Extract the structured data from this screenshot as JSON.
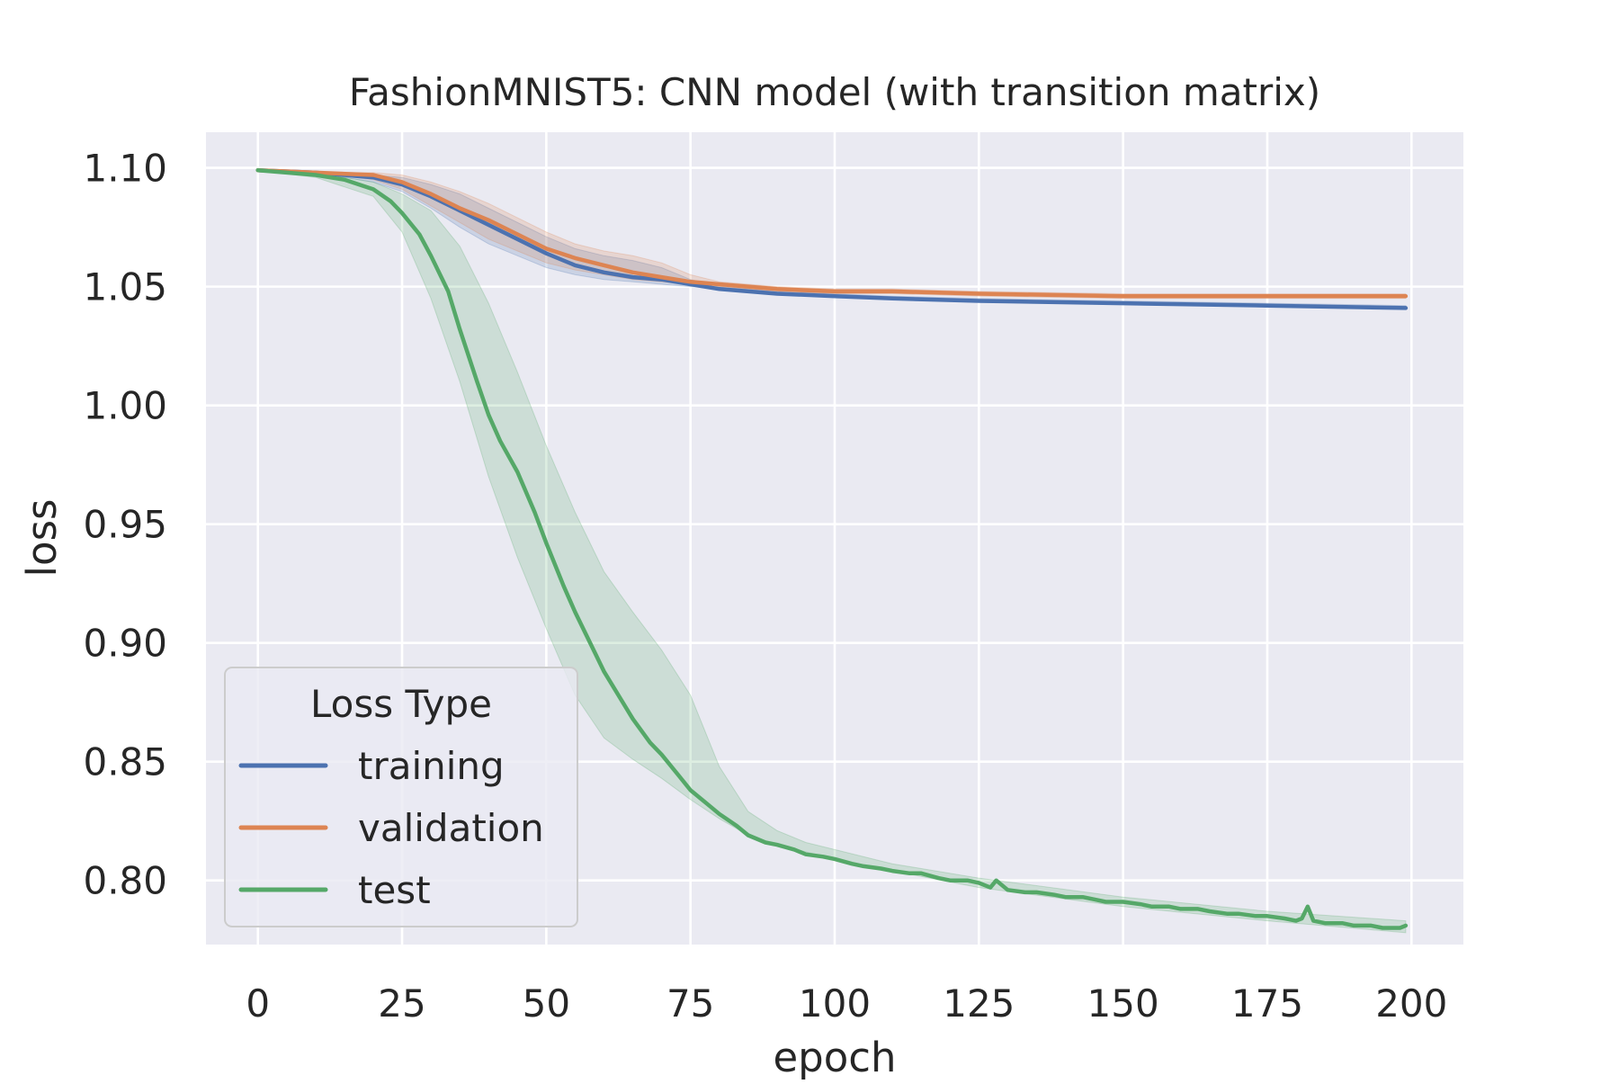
{
  "chart_data": {
    "type": "line",
    "title": "FashionMNIST5: CNN model (with transition matrix)",
    "xlabel": "epoch",
    "ylabel": "loss",
    "xlim": [
      -9,
      209
    ],
    "ylim": [
      0.773,
      1.115
    ],
    "x_ticks": [
      0,
      25,
      50,
      75,
      100,
      125,
      150,
      175,
      200
    ],
    "x_tick_labels": [
      "0",
      "25",
      "50",
      "75",
      "100",
      "125",
      "150",
      "175",
      "200"
    ],
    "y_ticks": [
      0.8,
      0.85,
      0.9,
      0.95,
      1.0,
      1.05,
      1.1
    ],
    "y_tick_labels": [
      "0.80",
      "0.85",
      "0.90",
      "0.95",
      "1.00",
      "1.05",
      "1.10"
    ],
    "grid": true,
    "background": "#eaeaf2",
    "legend": {
      "title": "Loss Type",
      "placement": "lower-left",
      "entries": [
        "training",
        "validation",
        "test"
      ]
    },
    "series": [
      {
        "name": "training",
        "color": "#4c72b0",
        "x": [
          0,
          10,
          20,
          25,
          30,
          35,
          40,
          45,
          50,
          55,
          60,
          65,
          70,
          75,
          80,
          90,
          100,
          110,
          125,
          150,
          175,
          199
        ],
        "values": [
          1.099,
          1.098,
          1.096,
          1.093,
          1.088,
          1.082,
          1.076,
          1.07,
          1.064,
          1.059,
          1.056,
          1.054,
          1.053,
          1.051,
          1.049,
          1.047,
          1.046,
          1.045,
          1.044,
          1.043,
          1.042,
          1.041
        ],
        "band_x": [
          0,
          10,
          20,
          25,
          30,
          35,
          40,
          45,
          50,
          55,
          60,
          65,
          70,
          75,
          80,
          90,
          100,
          110,
          125,
          150,
          175,
          199
        ],
        "band_lower": [
          1.099,
          1.098,
          1.094,
          1.09,
          1.083,
          1.075,
          1.068,
          1.063,
          1.058,
          1.055,
          1.053,
          1.052,
          1.051,
          1.05,
          1.049,
          1.047,
          1.046,
          1.045,
          1.044,
          1.043,
          1.042,
          1.041
        ],
        "band_upper": [
          1.099,
          1.098,
          1.097,
          1.096,
          1.093,
          1.089,
          1.083,
          1.077,
          1.071,
          1.066,
          1.063,
          1.061,
          1.058,
          1.053,
          1.05,
          1.048,
          1.047,
          1.046,
          1.045,
          1.044,
          1.043,
          1.042
        ]
      },
      {
        "name": "validation",
        "color": "#dd8452",
        "x": [
          0,
          10,
          20,
          25,
          30,
          35,
          40,
          45,
          50,
          55,
          60,
          65,
          70,
          75,
          80,
          90,
          100,
          110,
          125,
          150,
          175,
          199
        ],
        "values": [
          1.099,
          1.098,
          1.097,
          1.094,
          1.089,
          1.083,
          1.078,
          1.072,
          1.066,
          1.062,
          1.059,
          1.056,
          1.054,
          1.052,
          1.051,
          1.049,
          1.048,
          1.048,
          1.047,
          1.046,
          1.046,
          1.046
        ],
        "band_x": [
          0,
          10,
          20,
          25,
          30,
          35,
          40,
          45,
          50,
          55,
          60,
          65,
          70,
          75,
          80,
          90,
          100,
          110,
          125,
          150,
          175,
          199
        ],
        "band_lower": [
          1.099,
          1.098,
          1.095,
          1.091,
          1.084,
          1.077,
          1.07,
          1.065,
          1.06,
          1.057,
          1.055,
          1.053,
          1.052,
          1.051,
          1.05,
          1.048,
          1.047,
          1.047,
          1.046,
          1.045,
          1.045,
          1.045
        ],
        "band_upper": [
          1.099,
          1.098,
          1.098,
          1.097,
          1.094,
          1.09,
          1.085,
          1.079,
          1.073,
          1.068,
          1.065,
          1.063,
          1.06,
          1.055,
          1.052,
          1.05,
          1.049,
          1.049,
          1.048,
          1.047,
          1.047,
          1.047
        ]
      },
      {
        "name": "test",
        "color": "#55a868",
        "x": [
          0,
          5,
          10,
          15,
          20,
          23,
          25,
          28,
          30,
          33,
          35,
          38,
          40,
          42,
          45,
          48,
          50,
          53,
          55,
          58,
          60,
          63,
          65,
          68,
          70,
          73,
          75,
          78,
          80,
          83,
          85,
          88,
          90,
          93,
          95,
          98,
          100,
          103,
          105,
          108,
          110,
          113,
          115,
          118,
          120,
          123,
          125,
          127,
          128,
          130,
          133,
          135,
          138,
          140,
          143,
          145,
          147,
          150,
          153,
          155,
          158,
          160,
          163,
          165,
          168,
          170,
          173,
          175,
          178,
          180,
          181,
          182,
          183,
          185,
          188,
          190,
          193,
          195,
          198,
          199
        ],
        "values": [
          1.099,
          1.098,
          1.097,
          1.095,
          1.091,
          1.086,
          1.081,
          1.072,
          1.063,
          1.048,
          1.032,
          1.01,
          0.996,
          0.985,
          0.972,
          0.955,
          0.942,
          0.924,
          0.913,
          0.898,
          0.888,
          0.876,
          0.868,
          0.858,
          0.853,
          0.844,
          0.838,
          0.832,
          0.828,
          0.823,
          0.819,
          0.816,
          0.815,
          0.813,
          0.811,
          0.81,
          0.809,
          0.807,
          0.806,
          0.805,
          0.804,
          0.803,
          0.803,
          0.801,
          0.8,
          0.8,
          0.799,
          0.797,
          0.8,
          0.796,
          0.795,
          0.795,
          0.794,
          0.793,
          0.793,
          0.792,
          0.791,
          0.791,
          0.79,
          0.789,
          0.789,
          0.788,
          0.788,
          0.787,
          0.786,
          0.786,
          0.785,
          0.785,
          0.784,
          0.783,
          0.784,
          0.789,
          0.783,
          0.782,
          0.782,
          0.781,
          0.781,
          0.78,
          0.78,
          0.781
        ],
        "band_x": [
          0,
          10,
          20,
          25,
          30,
          35,
          40,
          45,
          50,
          55,
          60,
          65,
          70,
          75,
          80,
          85,
          90,
          95,
          100,
          110,
          125,
          150,
          175,
          199
        ],
        "band_lower": [
          1.099,
          1.096,
          1.088,
          1.073,
          1.045,
          1.01,
          0.97,
          0.936,
          0.906,
          0.878,
          0.86,
          0.851,
          0.843,
          0.834,
          0.826,
          0.819,
          0.815,
          0.812,
          0.809,
          0.804,
          0.797,
          0.789,
          0.783,
          0.778
        ],
        "band_upper": [
          1.099,
          1.098,
          1.094,
          1.089,
          1.082,
          1.067,
          1.043,
          1.014,
          0.983,
          0.955,
          0.93,
          0.913,
          0.897,
          0.878,
          0.848,
          0.829,
          0.821,
          0.816,
          0.813,
          0.807,
          0.801,
          0.793,
          0.787,
          0.783
        ]
      }
    ]
  }
}
